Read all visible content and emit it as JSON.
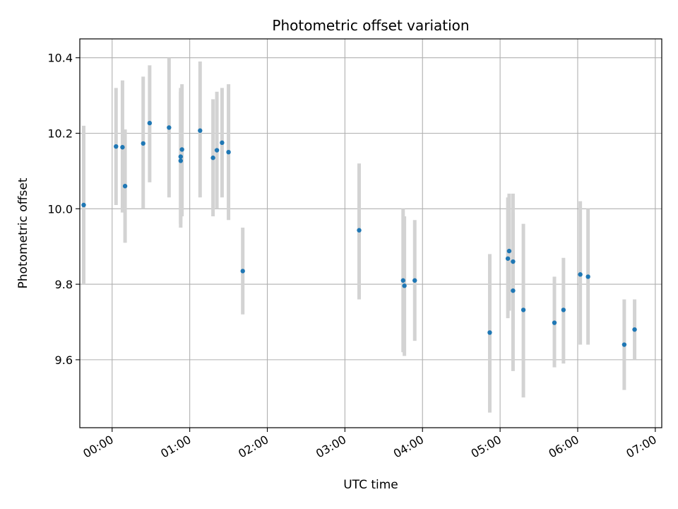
{
  "chart_data": {
    "type": "scatter",
    "title": "Photometric offset variation",
    "xlabel": "UTC time",
    "ylabel": "Photometric offset",
    "x_unit": "UTC HH:MM",
    "xlim": [
      "-00:25",
      "07:05"
    ],
    "ylim": [
      9.42,
      10.45
    ],
    "x_ticks": [
      "00:00",
      "01:00",
      "02:00",
      "03:00",
      "04:00",
      "05:00",
      "06:00",
      "07:00"
    ],
    "y_ticks": [
      "9.6",
      "9.8",
      "10.0",
      "10.2",
      "10.4"
    ],
    "grid": true,
    "marker_color": "#1f77b4",
    "errorbar_color": "#d3d3d3",
    "points": [
      {
        "x": "23:38",
        "y": 10.01,
        "ymin": 9.8,
        "ymax": 10.22
      },
      {
        "x": "00:03",
        "y": 10.165,
        "ymin": 10.01,
        "ymax": 10.32
      },
      {
        "x": "00:08",
        "y": 10.163,
        "ymin": 9.99,
        "ymax": 10.34
      },
      {
        "x": "00:10",
        "y": 10.06,
        "ymin": 9.91,
        "ymax": 10.21
      },
      {
        "x": "00:24",
        "y": 10.173,
        "ymin": 10.0,
        "ymax": 10.35
      },
      {
        "x": "00:29",
        "y": 10.227,
        "ymin": 10.07,
        "ymax": 10.38
      },
      {
        "x": "00:44",
        "y": 10.215,
        "ymin": 10.03,
        "ymax": 10.4
      },
      {
        "x": "00:53",
        "y": 10.138,
        "ymin": 9.96,
        "ymax": 10.32
      },
      {
        "x": "00:53",
        "y": 10.127,
        "ymin": 9.95,
        "ymax": 10.31
      },
      {
        "x": "00:54",
        "y": 10.157,
        "ymin": 9.98,
        "ymax": 10.33
      },
      {
        "x": "01:08",
        "y": 10.207,
        "ymin": 10.03,
        "ymax": 10.39
      },
      {
        "x": "01:18",
        "y": 10.135,
        "ymin": 9.98,
        "ymax": 10.29
      },
      {
        "x": "01:21",
        "y": 10.155,
        "ymin": 10.0,
        "ymax": 10.31
      },
      {
        "x": "01:25",
        "y": 10.175,
        "ymin": 10.03,
        "ymax": 10.32
      },
      {
        "x": "01:30",
        "y": 10.15,
        "ymin": 9.97,
        "ymax": 10.33
      },
      {
        "x": "01:41",
        "y": 9.835,
        "ymin": 9.72,
        "ymax": 9.95
      },
      {
        "x": "03:11",
        "y": 9.943,
        "ymin": 9.76,
        "ymax": 10.12
      },
      {
        "x": "03:45",
        "y": 9.81,
        "ymin": 9.62,
        "ymax": 10.0
      },
      {
        "x": "03:46",
        "y": 9.796,
        "ymin": 9.61,
        "ymax": 9.98
      },
      {
        "x": "03:54",
        "y": 9.81,
        "ymin": 9.65,
        "ymax": 9.97
      },
      {
        "x": "04:52",
        "y": 9.672,
        "ymin": 9.46,
        "ymax": 9.88
      },
      {
        "x": "05:06",
        "y": 9.868,
        "ymin": 9.71,
        "ymax": 10.03
      },
      {
        "x": "05:07",
        "y": 9.888,
        "ymin": 9.73,
        "ymax": 10.04
      },
      {
        "x": "05:10",
        "y": 9.86,
        "ymin": 9.68,
        "ymax": 10.04
      },
      {
        "x": "05:10",
        "y": 9.783,
        "ymin": 9.57,
        "ymax": 9.99
      },
      {
        "x": "05:18",
        "y": 9.732,
        "ymin": 9.5,
        "ymax": 9.96
      },
      {
        "x": "05:42",
        "y": 9.698,
        "ymin": 9.58,
        "ymax": 9.82
      },
      {
        "x": "05:49",
        "y": 9.732,
        "ymin": 9.59,
        "ymax": 9.87
      },
      {
        "x": "06:02",
        "y": 9.826,
        "ymin": 9.64,
        "ymax": 10.02
      },
      {
        "x": "06:08",
        "y": 9.82,
        "ymin": 9.64,
        "ymax": 10.0
      },
      {
        "x": "06:36",
        "y": 9.64,
        "ymin": 9.52,
        "ymax": 9.76
      },
      {
        "x": "06:44",
        "y": 9.68,
        "ymin": 9.6,
        "ymax": 9.76
      }
    ]
  }
}
